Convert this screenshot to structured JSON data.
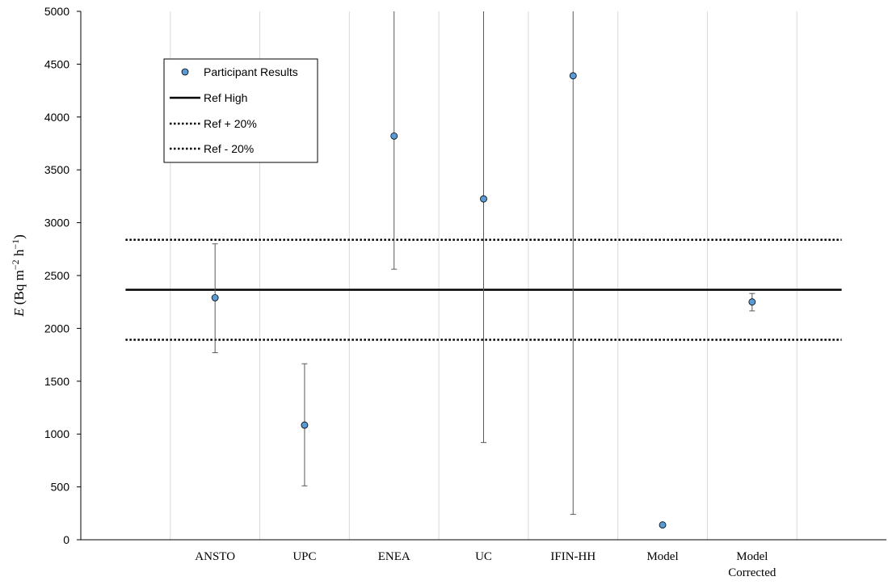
{
  "chart_data": {
    "type": "scatter",
    "categories": [
      "ANSTO",
      "UPC",
      "ENEA",
      "UC",
      "IFIN-HH",
      "Model",
      "Model Corrected"
    ],
    "category_lines": [
      [
        "ANSTO"
      ],
      [
        "UPC"
      ],
      [
        "ENEA"
      ],
      [
        "UC"
      ],
      [
        "IFIN-HH"
      ],
      [
        "Model"
      ],
      [
        "Model",
        "Corrected"
      ]
    ],
    "series": [
      {
        "name": "Participant Results",
        "values": [
          2290,
          1085,
          3820,
          3225,
          4390,
          140,
          2250
        ],
        "error_low": [
          1770,
          510,
          2560,
          920,
          240,
          null,
          2165
        ],
        "error_high": [
          2800,
          1665,
          5000,
          5000,
          5000,
          null,
          2330
        ],
        "color": "#5b9bd5"
      }
    ],
    "reference_lines": [
      {
        "name": "Ref High",
        "value": 2365,
        "style": "solid"
      },
      {
        "name": "Ref + 20%",
        "value": 2838,
        "style": "dotted"
      },
      {
        "name": "Ref - 20%",
        "value": 1892,
        "style": "dotted"
      }
    ],
    "ylim": [
      0,
      5000
    ],
    "yticks": [
      0,
      500,
      1000,
      1500,
      2000,
      2500,
      3000,
      3500,
      4000,
      4500,
      5000
    ],
    "ylabel": {
      "symbol": "E",
      "open": " (Bq m",
      "exp1": "−2",
      "mid": " h",
      "exp2": "−1",
      "close": ")"
    },
    "grid": {
      "vertical": true,
      "horizontal": false
    },
    "legend_position": "top-left"
  }
}
